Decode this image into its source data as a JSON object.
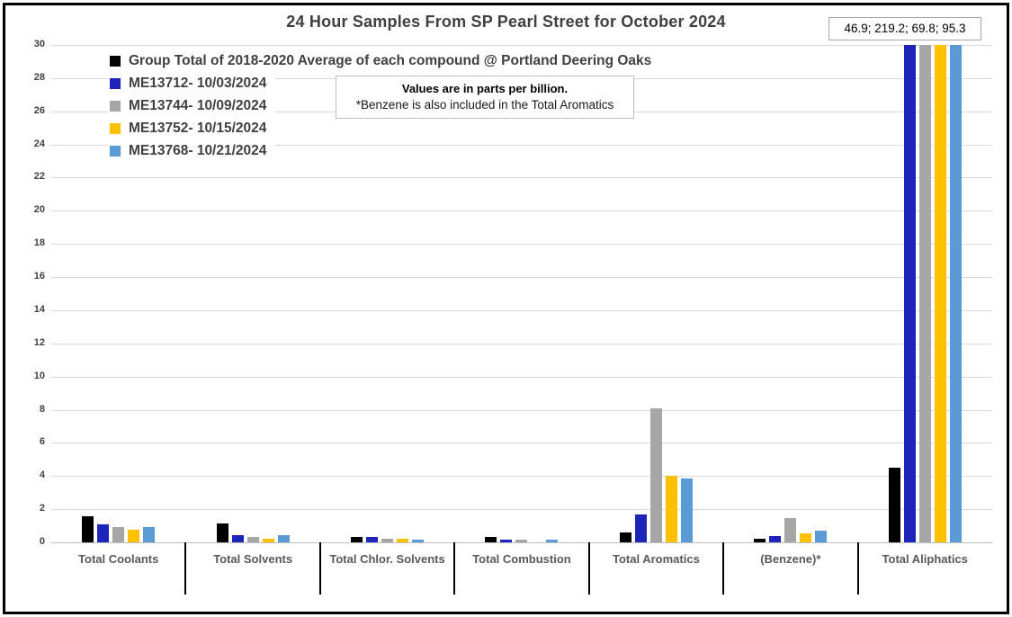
{
  "title": "24 Hour Samples From SP Pearl Street for October 2024",
  "note": {
    "line1": "Values are in parts per billion.",
    "line2": "*Benzene is also included in the Total Aromatics"
  },
  "annotation_box": "46.9; 219.2; 69.8; 95.3",
  "chart_data": {
    "type": "bar",
    "title": "24 Hour Samples From SP Pearl Street for October 2024",
    "categories": [
      "Total Coolants",
      "Total Solvents",
      "Total Chlor. Solvents",
      "Total Combustion",
      "Total Aromatics",
      "(Benzene)*",
      "Total Aliphatics"
    ],
    "series": [
      {
        "name": "Group Total of 2018-2020 Average of each compound @ Portland Deering Oaks",
        "color": "#000000",
        "values": [
          1.55,
          1.15,
          0.35,
          0.3,
          0.6,
          0.2,
          4.5
        ]
      },
      {
        "name": "ME13712- 10/03/2024",
        "color": "#1C25B8",
        "values": [
          1.1,
          0.45,
          0.3,
          0.15,
          1.7,
          0.4,
          46.9
        ]
      },
      {
        "name": "ME13744- 10/09/2024",
        "color": "#A6A6A6",
        "values": [
          0.9,
          0.35,
          0.2,
          0.15,
          8.1,
          1.45,
          219.2
        ]
      },
      {
        "name": "ME13752- 10/15/2024",
        "color": "#FFC000",
        "values": [
          0.75,
          0.2,
          0.2,
          0,
          4.0,
          0.55,
          69.8
        ]
      },
      {
        "name": "ME13768- 10/21/2024",
        "color": "#5B9BD5",
        "values": [
          0.95,
          0.45,
          0.15,
          0.15,
          3.85,
          0.7,
          95.3
        ]
      }
    ],
    "xlabel": "",
    "ylabel": "",
    "ylim": [
      0,
      30
    ],
    "ytick_step": 2,
    "grid": true,
    "legend_position": "top-left",
    "off_scale_values_label": "46.9; 219.2; 69.8; 95.3",
    "units": "parts per billion"
  },
  "colors": {
    "grid": "#D9D9D9",
    "axis": "#BFBFBF",
    "title_text": "#404040",
    "category_text": "#595959"
  }
}
